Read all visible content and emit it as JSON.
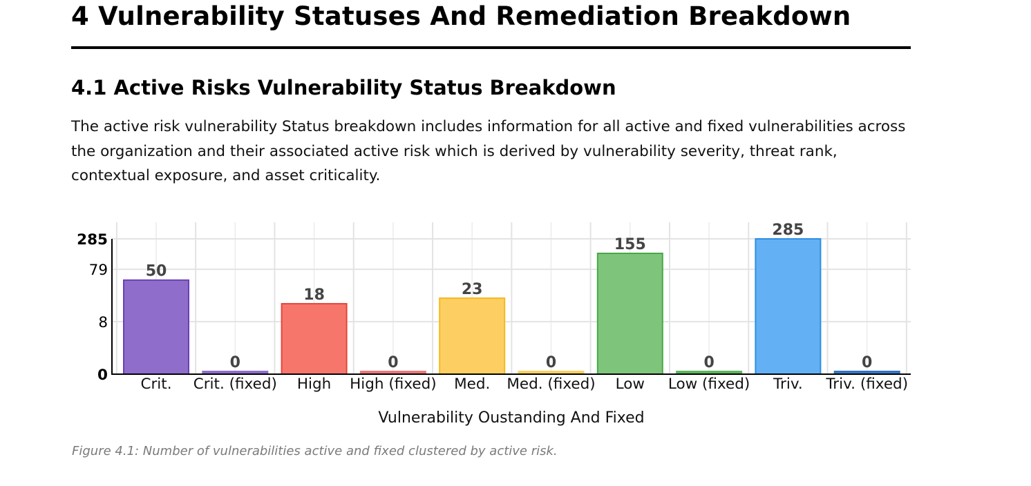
{
  "heading": "4 Vulnerability Statuses And Remediation Breakdown",
  "subheading": "4.1 Active Risks Vulnerability Status Breakdown",
  "paragraph": "The active risk vulnerability Status breakdown includes information for all active and fixed vulnerabilities across the organization and their associated active risk which is derived by vulnerability severity, threat rank, contextual exposure, and asset criticality.",
  "caption": "Figure 4.1: Number of vulnerabilities active and fixed clustered by active risk.",
  "chart_data": {
    "type": "bar",
    "categories": [
      "Crit.",
      "Crit. (fixed)",
      "High",
      "High (fixed)",
      "Med.",
      "Med. (fixed)",
      "Low",
      "Low (fixed)",
      "Triv.",
      "Triv. (fixed)"
    ],
    "values": [
      50,
      0,
      18,
      0,
      23,
      0,
      155,
      0,
      285,
      0
    ],
    "data_labels": [
      "50",
      "0",
      "18",
      "0",
      "23",
      "0",
      "155",
      "0",
      "285",
      "0"
    ],
    "fill_colors": [
      "#8e6dcb",
      "#8e6dcb",
      "#f7766c",
      "#e9787a",
      "#fdcf62",
      "#fdcf62",
      "#7ec57b",
      "#5cb65c",
      "#63b0f5",
      "#3a7bc8"
    ],
    "border_colors": [
      "#6a3fb7",
      "#8e6dcb",
      "#e5443b",
      "#e9787a",
      "#f6b91c",
      "#fdcf62",
      "#4aa849",
      "#5cb65c",
      "#2e8fe0",
      "#2f6fba"
    ],
    "xlabel": "Vulnerability Oustanding And Fixed",
    "ylabel": "",
    "yscale": "log",
    "ylim": [
      0,
      285
    ],
    "yticks": [
      0,
      8,
      79,
      285
    ],
    "ytick_labels": [
      "0",
      "8",
      "79",
      "285"
    ],
    "grid": true
  }
}
